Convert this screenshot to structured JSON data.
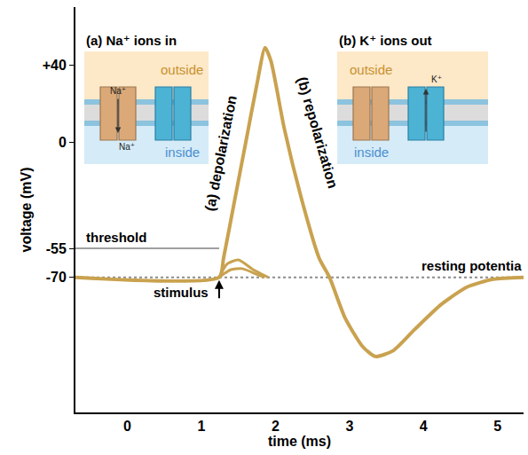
{
  "chart_data": {
    "type": "line",
    "xlabel": "time (ms)",
    "ylabel": "voltage (mV)",
    "xlim": [
      -0.7,
      5.35
    ],
    "xticks": [
      0,
      1,
      2,
      3,
      4,
      5
    ],
    "ylim": [
      -140,
      70
    ],
    "yticks": [
      -70,
      -55,
      0,
      {
        "value": 40,
        "label": "+40"
      }
    ],
    "grid": false,
    "series": [
      {
        "color": "#c9a24f",
        "x": [
          -0.7,
          1.24,
          1.3,
          1.45,
          1.6,
          1.75,
          1.86,
          1.94,
          2.12,
          2.35,
          2.59,
          2.73,
          2.94,
          3.18,
          3.35,
          3.59,
          3.88,
          4.24,
          4.59,
          4.94,
          5.35
        ],
        "values": [
          -70,
          -70,
          -60,
          -30,
          0,
          30,
          49,
          42,
          7,
          -29,
          -60,
          -70,
          -91,
          -106,
          -111,
          -108,
          -97,
          -84,
          -75,
          -71,
          -70
        ]
      },
      {
        "color": "#c9a24f",
        "x": [
          1.24,
          1.35,
          1.5,
          1.7,
          1.9
        ],
        "values": [
          -70,
          -63,
          -61,
          -66,
          -70
        ]
      },
      {
        "color": "#c9a24f",
        "x": [
          1.24,
          1.4,
          1.55,
          1.75,
          1.85
        ],
        "values": [
          -70,
          -66,
          -65.5,
          -68.5,
          -70
        ]
      }
    ],
    "threshold": {
      "label": "threshold",
      "value": -55
    },
    "resting_potential": {
      "label": "resting potentia",
      "value": -70
    },
    "stimulus": {
      "label": "stimulus",
      "x": 1.24
    },
    "annotations": [
      "(a) depolarization",
      "(b) repolarization"
    ],
    "panels": [
      {
        "title": "(a) Na⁺ ions in",
        "outside": "outside",
        "inside": "inside",
        "ion": "Na⁺",
        "direction": "in"
      },
      {
        "title": "(b) K⁺ ions out",
        "outside": "outside",
        "inside": "inside",
        "ion": "K⁺",
        "direction": "out"
      }
    ]
  }
}
